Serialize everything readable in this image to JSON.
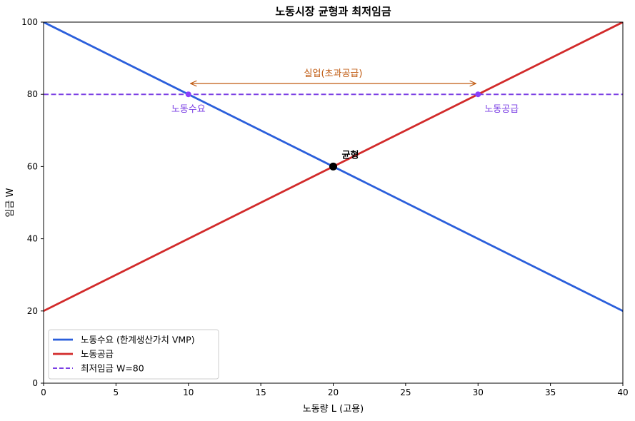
{
  "chart_data": {
    "type": "line",
    "title": "노동시장 균형과 최저임금",
    "xlabel": "노동량 L (고용)",
    "ylabel": "임금 W",
    "xlim": [
      0,
      40
    ],
    "ylim": [
      0,
      100
    ],
    "xticks": [
      0,
      5,
      10,
      15,
      20,
      25,
      30,
      35,
      40
    ],
    "yticks": [
      0,
      20,
      40,
      60,
      80,
      100
    ],
    "grid": false,
    "legend_position": "bottom-left",
    "series": [
      {
        "name": "노동수요 (한계생산가치 VMP)",
        "color": "#2b5fdb",
        "style": "solid",
        "x": [
          0,
          40
        ],
        "y": [
          100,
          20
        ]
      },
      {
        "name": "노동공급",
        "color": "#d22a2a",
        "style": "solid",
        "x": [
          0,
          40
        ],
        "y": [
          20,
          100
        ]
      },
      {
        "name": "최저임금 W=80",
        "color": "#7b3fe4",
        "style": "dashed",
        "x": [
          0,
          40
        ],
        "y": [
          80,
          80
        ]
      }
    ],
    "points": [
      {
        "label": "균형",
        "x": 20,
        "y": 60,
        "color": "#000000"
      },
      {
        "label": "노동수요",
        "x": 10,
        "y": 80,
        "color": "#8a3ffc"
      },
      {
        "label": "노동공급",
        "x": 30,
        "y": 80,
        "color": "#8a3ffc"
      }
    ],
    "arrow_annotation": {
      "label": "실업(초과공급)",
      "x_from": 10,
      "x_to": 30,
      "color": "#c05a10"
    }
  }
}
